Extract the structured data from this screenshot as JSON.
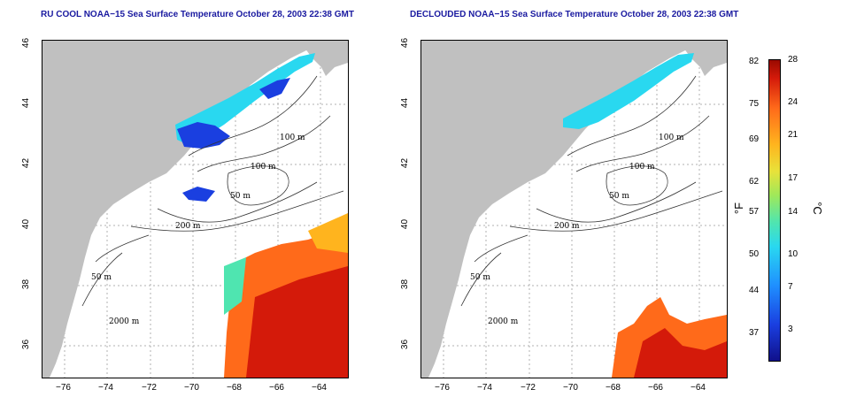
{
  "left_panel": {
    "title": "RU COOL NOAA−15 Sea Surface Temperature October 28, 2003 22:38 GMT",
    "contour_labels": [
      "100 m",
      "100 m",
      "50 m",
      "200 m",
      "50 m",
      "2000 m"
    ]
  },
  "right_panel": {
    "title": "DECLOUDED NOAA−15 Sea Surface Temperature October 28, 2003 22:38 GMT",
    "contour_labels": [
      "100 m",
      "100 m",
      "50 m",
      "200 m",
      "50 m",
      "2000 m"
    ]
  },
  "axes": {
    "x_ticks": [
      "−76",
      "−74",
      "−72",
      "−70",
      "−68",
      "−66",
      "−64"
    ],
    "y_ticks": [
      "46",
      "44",
      "42",
      "40",
      "38",
      "36"
    ]
  },
  "colorbar": {
    "f_ticks": [
      "82",
      "75",
      "69",
      "62",
      "57",
      "50",
      "44",
      "37"
    ],
    "c_ticks": [
      "28",
      "24",
      "21",
      "17",
      "14",
      "10",
      "7",
      "3"
    ],
    "f_label": "°F",
    "c_label": "°C"
  },
  "colors": {
    "land": "#c0c0c0",
    "title": "#1a1aa0",
    "cold": "#1a3fe0",
    "cool": "#29d8f0",
    "warm": "#ff6a1a",
    "hot": "#d41a0a"
  }
}
